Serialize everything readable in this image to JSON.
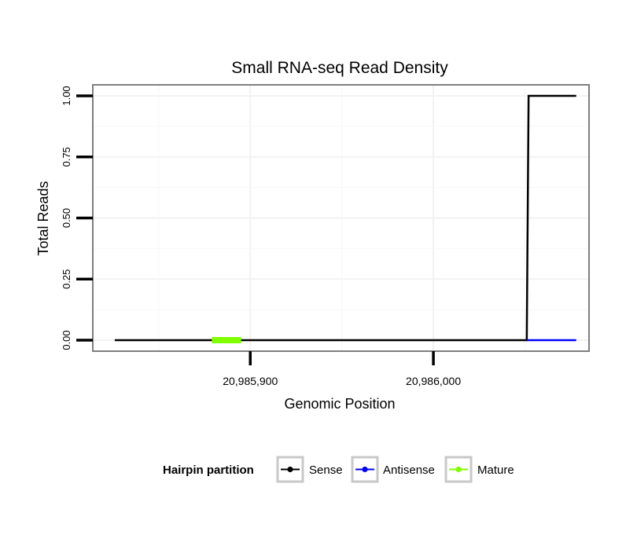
{
  "chart_data": {
    "type": "line",
    "title": "Small RNA-seq Read Density",
    "xlabel": "Genomic Position",
    "ylabel": "Total Reads",
    "xlim": [
      20985814,
      20986085
    ],
    "ylim": [
      -0.045,
      1.045
    ],
    "x_ticks": [
      {
        "value": 20985900,
        "label": "20,985,900"
      },
      {
        "value": 20986000,
        "label": "20,986,000"
      }
    ],
    "y_ticks": [
      {
        "value": 0.0,
        "label": "0.00"
      },
      {
        "value": 0.25,
        "label": "0.25"
      },
      {
        "value": 0.5,
        "label": "0.50"
      },
      {
        "value": 0.75,
        "label": "0.75"
      },
      {
        "value": 1.0,
        "label": "1.00"
      }
    ],
    "grid": true,
    "legend_position": "bottom",
    "legend_title": "Hairpin partition",
    "series": [
      {
        "name": "Sense",
        "color": "#000000",
        "points": [
          [
            20985826,
            0
          ],
          [
            20986051,
            0
          ],
          [
            20986052,
            1
          ],
          [
            20986078,
            1
          ]
        ]
      },
      {
        "name": "Antisense",
        "color": "#0000ff",
        "points": [
          [
            20986051,
            0
          ],
          [
            20986078,
            0
          ]
        ]
      },
      {
        "name": "Mature",
        "color": "#7fff00",
        "points": [
          [
            20985879,
            0
          ],
          [
            20985895,
            0
          ]
        ]
      }
    ]
  }
}
